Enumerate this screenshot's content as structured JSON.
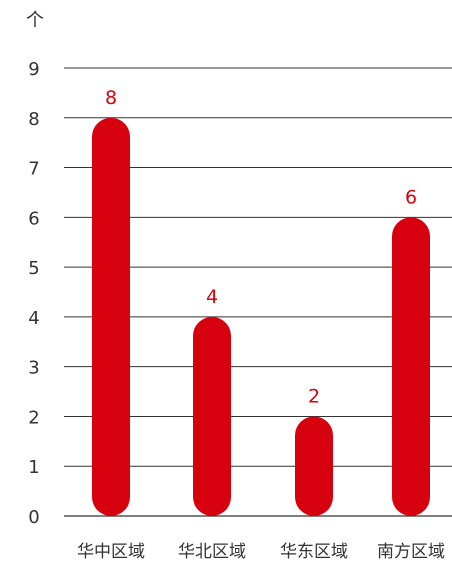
{
  "chart_data": {
    "type": "bar",
    "unit_label": "个",
    "categories": [
      "华中区域",
      "华北区域",
      "华东区域",
      "南方区域"
    ],
    "values": [
      8,
      4,
      2,
      6
    ],
    "data_labels": [
      "8",
      "4",
      "2",
      "6"
    ],
    "ylim": [
      0,
      9
    ],
    "yticks": [
      "0",
      "1",
      "2",
      "3",
      "4",
      "5",
      "6",
      "7",
      "8",
      "9"
    ],
    "grid": true,
    "colors": {
      "bar": "#d7000f",
      "label": "#d7000f",
      "axis_text": "#333333",
      "grid": "#333333"
    }
  }
}
